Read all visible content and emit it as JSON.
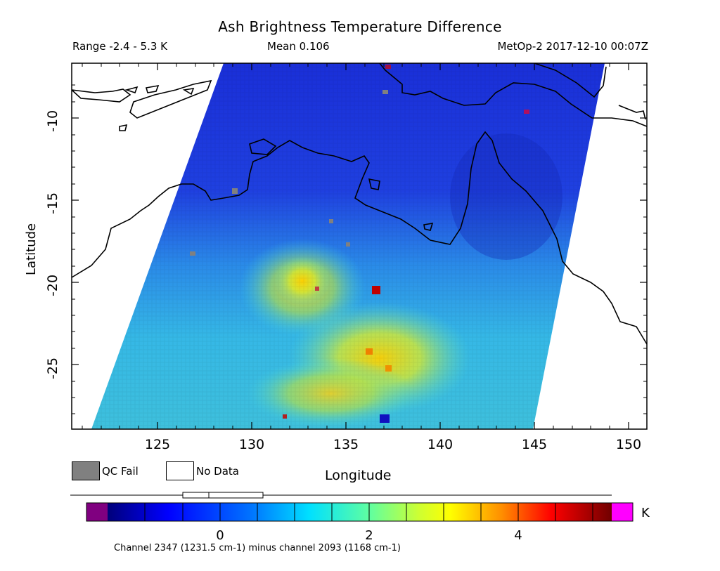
{
  "title": "Ash Brightness Temperature Difference",
  "header": {
    "range": "Range -2.4 - 5.3 K",
    "mean": "Mean 0.106",
    "satellite": "MetOp-2 2017-12-10 00:07Z"
  },
  "axes": {
    "xlabel": "Longitude",
    "ylabel": "Latitude",
    "xticks": [
      "125",
      "130",
      "135",
      "140",
      "145",
      "150"
    ],
    "yticks": [
      "-10",
      "-15",
      "-20",
      "-25"
    ]
  },
  "legend": {
    "qc_fail": "QC Fail",
    "no_data": "No Data",
    "qc_fail_color": "#808080",
    "no_data_color": "#ffffff"
  },
  "colorbar": {
    "ticks": [
      "0",
      "2",
      "4"
    ],
    "unit": "K",
    "under_color": "#800080",
    "over_color": "#ff00ff",
    "description": "Channel 2347 (1231.5 cm-1) minus channel 2093 (1168 cm-1)"
  },
  "map": {
    "coastline_color": "#000000",
    "low_color": "#1a34e0",
    "high_color": "#d0e040"
  }
}
